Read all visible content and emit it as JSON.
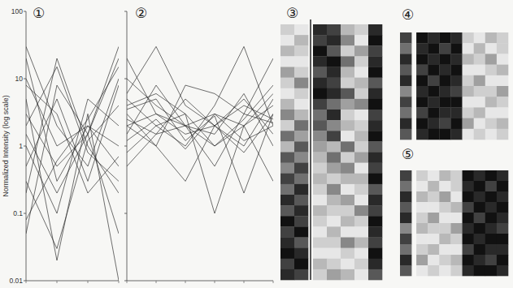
{
  "chart_data": [
    {
      "type": "line",
      "title": "①",
      "ylabel": "Normalized Intensity (log scale)",
      "log": "y",
      "color": "#2a2a2a",
      "tick_labels": "y",
      "categories": [
        null,
        null,
        null,
        null
      ],
      "ylim": [
        0.01,
        100
      ],
      "yticks": [
        0.01,
        0.1,
        1,
        10,
        100
      ],
      "series": [
        {
          "values": [
            20,
            0.3,
            2,
            0.5
          ]
        },
        {
          "values": [
            0.05,
            8,
            1.5,
            30
          ]
        },
        {
          "values": [
            5,
            0.02,
            3,
            0.01
          ]
        },
        {
          "values": [
            30,
            2,
            0.5,
            10
          ]
        },
        {
          "values": [
            0.2,
            20,
            1,
            0.2
          ]
        },
        {
          "values": [
            1,
            0.1,
            5,
            2
          ]
        },
        {
          "values": [
            3,
            0.5,
            1.5,
            0.05
          ]
        },
        {
          "values": [
            0.5,
            5,
            0.3,
            8
          ]
        },
        {
          "values": [
            10,
            1,
            2,
            1
          ]
        },
        {
          "values": [
            0.3,
            0.03,
            1.2,
            4
          ]
        },
        {
          "values": [
            2,
            15,
            0.8,
            0.3
          ]
        },
        {
          "values": [
            0.08,
            0.6,
            2.5,
            15
          ]
        },
        {
          "values": [
            8,
            3,
            0.2,
            0.7
          ]
        },
        {
          "values": [
            1.5,
            0.2,
            1.5,
            20
          ]
        }
      ]
    },
    {
      "type": "line",
      "title": "②",
      "log": "y",
      "color": "#2a2a2a",
      "tick_labels": false,
      "categories": [
        null,
        null,
        null,
        null,
        null,
        null
      ],
      "ylim": [
        0.01,
        100
      ],
      "yticks": [
        0.01,
        0.1,
        1,
        10,
        100
      ],
      "series": [
        {
          "values": [
            2,
            3,
            1.5,
            2,
            4,
            2.5
          ]
        },
        {
          "values": [
            5,
            2,
            3,
            1,
            2,
            6
          ]
        },
        {
          "values": [
            1.5,
            8,
            2,
            3,
            1.2,
            2
          ]
        },
        {
          "values": [
            3,
            1,
            0.3,
            2,
            5,
            1.5
          ]
        },
        {
          "values": [
            10,
            4,
            2,
            0.5,
            3,
            20
          ]
        },
        {
          "values": [
            2.5,
            1.5,
            5,
            2,
            0.8,
            3
          ]
        },
        {
          "values": [
            0.8,
            2,
            1,
            4,
            30,
            2
          ]
        },
        {
          "values": [
            4,
            6,
            3,
            0.1,
            2,
            4
          ]
        },
        {
          "values": [
            20,
            3,
            2,
            1.5,
            6,
            1
          ]
        },
        {
          "values": [
            1.2,
            2.5,
            0.9,
            3,
            2,
            0.3
          ]
        },
        {
          "values": [
            6,
            30,
            4,
            2,
            1,
            5
          ]
        },
        {
          "values": [
            2,
            1,
            8,
            6,
            3,
            2.2
          ]
        },
        {
          "values": [
            0.5,
            1.5,
            2,
            1,
            2.5,
            8
          ]
        },
        {
          "values": [
            3.5,
            5,
            1.2,
            2.8,
            0.2,
            3
          ]
        }
      ]
    },
    {
      "type": "heatmap",
      "title": "③",
      "color": "#111111",
      "cells": [
        [
          0.2,
          0.1,
          0.9,
          0.8,
          0.3,
          0.2,
          0.9
        ],
        [
          0.1,
          0.3,
          0.8,
          0.9,
          0.5,
          0.1,
          1
        ],
        [
          0.3,
          0.2,
          1,
          0.7,
          0.2,
          0.4,
          0.8
        ],
        [
          0.1,
          0.1,
          0.9,
          1,
          0.6,
          0.2,
          0.9
        ],
        [
          0.4,
          0.2,
          0.7,
          0.9,
          0.3,
          0.1,
          1
        ],
        [
          0.2,
          0.5,
          0.9,
          0.8,
          0.2,
          0.3,
          0.7
        ],
        [
          0.1,
          0.2,
          1,
          0.9,
          0.7,
          0.2,
          0.9
        ],
        [
          0.3,
          0.1,
          0.8,
          0.6,
          0.4,
          0.5,
          1
        ],
        [
          0.5,
          0.3,
          0.6,
          0.9,
          0.2,
          0.1,
          0.8
        ],
        [
          0.2,
          0.6,
          0.7,
          0.5,
          0.3,
          0.2,
          0.9
        ],
        [
          0.6,
          0.4,
          0.5,
          0.8,
          0.1,
          0.3,
          1
        ],
        [
          0.3,
          0.7,
          0.4,
          0.3,
          0.6,
          0.2,
          0.7
        ],
        [
          0.7,
          0.5,
          0.3,
          0.6,
          0.2,
          0.4,
          0.9
        ],
        [
          0.5,
          0.8,
          0.2,
          0.4,
          0.5,
          0.1,
          0.8
        ],
        [
          0.8,
          0.6,
          0.3,
          0.2,
          0.3,
          0.3,
          1
        ],
        [
          0.6,
          0.9,
          0.2,
          0.5,
          0.1,
          0.2,
          0.7
        ],
        [
          0.9,
          0.7,
          0.1,
          0.3,
          0.4,
          0.1,
          0.9
        ],
        [
          0.7,
          0.9,
          0.3,
          0.2,
          0.2,
          0.5,
          0.8
        ],
        [
          1,
          0.8,
          0.2,
          0.1,
          0.3,
          0.2,
          1
        ],
        [
          0.8,
          1,
          0.1,
          0.3,
          0.1,
          0.1,
          0.9
        ],
        [
          0.9,
          0.7,
          0.2,
          0.2,
          0.5,
          0.3,
          0.8
        ],
        [
          1,
          0.9,
          0.1,
          0.1,
          0.2,
          0.1,
          1
        ],
        [
          0.8,
          1,
          0.3,
          0.2,
          0.1,
          0.2,
          0.9
        ],
        [
          0.9,
          0.8,
          0.2,
          0.4,
          0.3,
          0.1,
          0.7
        ]
      ]
    },
    {
      "type": "heatmap",
      "title": "④",
      "color": "#111111",
      "cells": [
        [
          0.8,
          1,
          0.9,
          1,
          0.9,
          0.2,
          0.1,
          0.3,
          0.2
        ],
        [
          0.6,
          0.9,
          1,
          0.8,
          1,
          0.1,
          0.3,
          0.1,
          0.2
        ],
        [
          0.9,
          1,
          0.9,
          1,
          0.9,
          0.3,
          0.2,
          0.4,
          0.1
        ],
        [
          0.7,
          0.8,
          1,
          0.9,
          1,
          0.1,
          0.1,
          0.2,
          0.3
        ],
        [
          0.9,
          1,
          0.8,
          1,
          0.9,
          0.2,
          0.4,
          0.1,
          0.1
        ],
        [
          0.5,
          0.9,
          1,
          0.9,
          0.8,
          0.3,
          0.2,
          0.2,
          0.4
        ],
        [
          0.8,
          1,
          0.9,
          1,
          1,
          0.1,
          0.1,
          0.3,
          0.2
        ],
        [
          0.6,
          0.8,
          1,
          0.9,
          0.9,
          0.2,
          0.3,
          0.1,
          0.1
        ],
        [
          0.9,
          1,
          0.9,
          0.8,
          1,
          0.4,
          0.1,
          0.2,
          0.3
        ],
        [
          0.7,
          0.9,
          1,
          1,
          0.9,
          0.1,
          0.2,
          0.1,
          0.2
        ]
      ]
    },
    {
      "type": "heatmap",
      "title": "⑤",
      "color": "#111111",
      "cells": [
        [
          0.8,
          0.2,
          0.1,
          0.3,
          0.2,
          1,
          0.9,
          1,
          0.9
        ],
        [
          0.6,
          0.1,
          0.3,
          0.1,
          0.2,
          0.9,
          1,
          0.8,
          1
        ],
        [
          0.9,
          0.3,
          0.2,
          0.4,
          0.1,
          1,
          0.9,
          1,
          0.9
        ],
        [
          0.7,
          0.1,
          0.1,
          0.2,
          0.3,
          0.8,
          1,
          0.9,
          1
        ],
        [
          0.9,
          0.2,
          0.4,
          0.1,
          0.1,
          1,
          0.8,
          1,
          0.9
        ],
        [
          0.5,
          0.3,
          0.2,
          0.2,
          0.4,
          0.9,
          1,
          0.9,
          0.8
        ],
        [
          0.8,
          0.1,
          0.1,
          0.3,
          0.2,
          1,
          0.9,
          1,
          1
        ],
        [
          0.6,
          0.2,
          0.3,
          0.1,
          0.1,
          0.8,
          1,
          0.9,
          0.9
        ],
        [
          0.9,
          0.4,
          0.1,
          0.2,
          0.3,
          1,
          0.9,
          0.8,
          1
        ],
        [
          0.7,
          0.1,
          0.2,
          0.1,
          0.2,
          0.9,
          1,
          1,
          0.9
        ]
      ]
    }
  ]
}
